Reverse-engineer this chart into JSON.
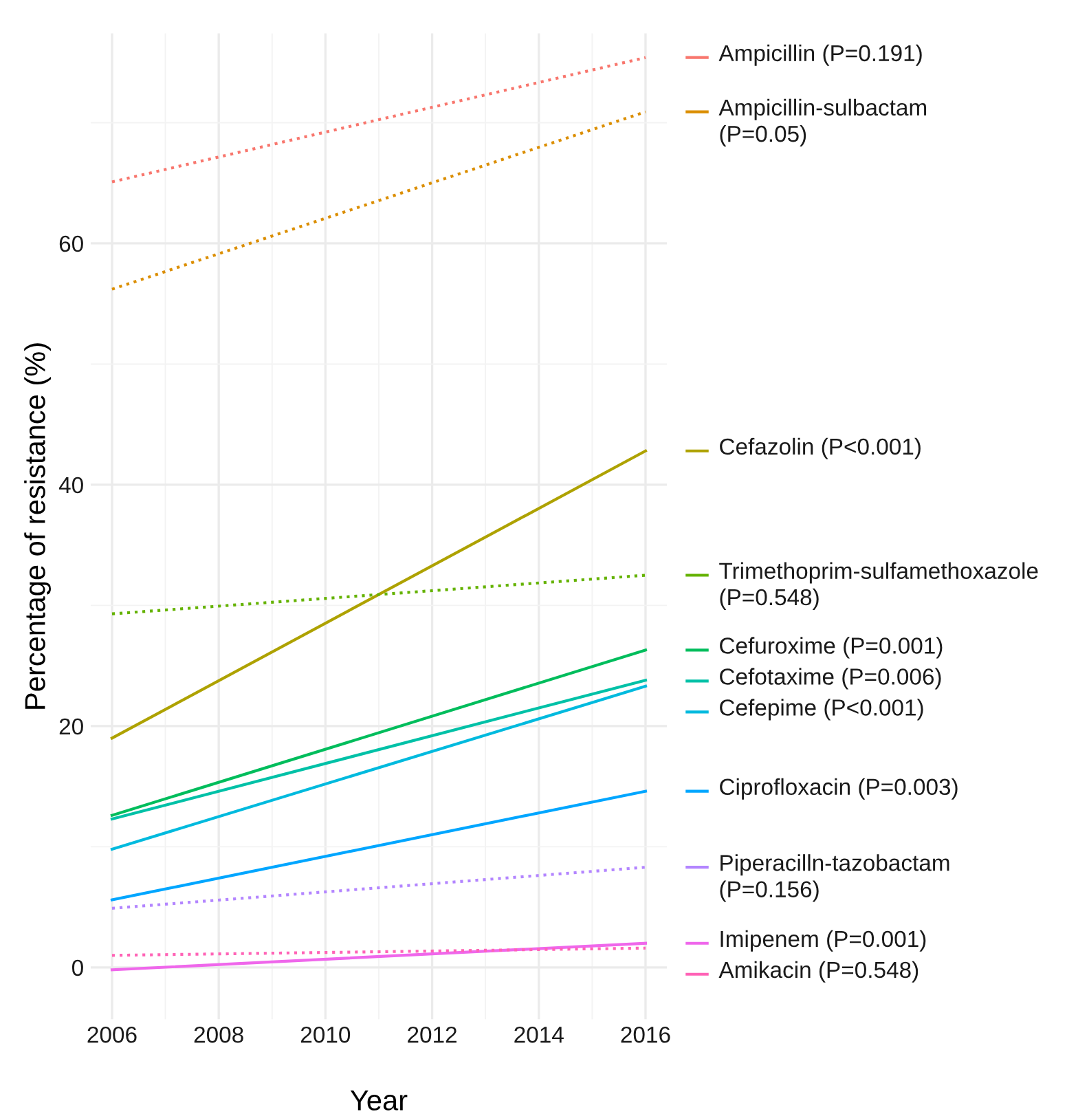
{
  "chart_data": {
    "type": "line",
    "xlabel": "Year",
    "ylabel": "Percentage of resistance (%)",
    "xlim": [
      2005.6,
      2016.4
    ],
    "ylim": [
      -4.3,
      77.4
    ],
    "xticks": [
      2006,
      2008,
      2010,
      2012,
      2014,
      2016
    ],
    "yticks": [
      0,
      20,
      40,
      60
    ],
    "grid": true,
    "legend": "right",
    "marker": "none",
    "x": [
      2006,
      2016
    ],
    "series": [
      {
        "name": "Ampicillin (P=0.191)",
        "color": "#f8766d",
        "line_style": "dotted",
        "values": [
          65.1,
          75.4
        ]
      },
      {
        "name": "Ampicillin-sulbactam\n(P=0.05)",
        "color": "#db8e00",
        "line_style": "dotted",
        "values": [
          56.2,
          70.9
        ]
      },
      {
        "name": "Cefazolin (P<0.001)",
        "color": "#aea200",
        "line_style": "solid",
        "values": [
          19.0,
          42.8
        ]
      },
      {
        "name": "Trimethoprim-sulfamethoxazole\n(P=0.548)",
        "color": "#64b200",
        "line_style": "dotted",
        "values": [
          29.3,
          32.5
        ]
      },
      {
        "name": "Cefuroxime (P=0.001)",
        "color": "#00bd5c",
        "line_style": "solid",
        "values": [
          12.6,
          26.3
        ]
      },
      {
        "name": "Cefotaxime (P=0.006)",
        "color": "#00c1a7",
        "line_style": "solid",
        "values": [
          12.3,
          23.8
        ]
      },
      {
        "name": "Cefepime (P<0.001)",
        "color": "#00bade",
        "line_style": "solid",
        "values": [
          9.8,
          23.3
        ]
      },
      {
        "name": "Ciprofloxacin (P=0.003)",
        "color": "#00a6ff",
        "line_style": "solid",
        "values": [
          5.6,
          14.6
        ]
      },
      {
        "name": "Piperacilln-tazobactam\n(P=0.156)",
        "color": "#b385ff",
        "line_style": "dotted",
        "values": [
          4.9,
          8.3
        ]
      },
      {
        "name": "Imipenem (P=0.001)",
        "color": "#ef67eb",
        "line_style": "solid",
        "values": [
          -0.2,
          2.0
        ]
      },
      {
        "name": "Amikacin (P=0.548)",
        "color": "#ff63b6",
        "line_style": "dotted",
        "values": [
          1.0,
          1.6
        ]
      }
    ]
  }
}
